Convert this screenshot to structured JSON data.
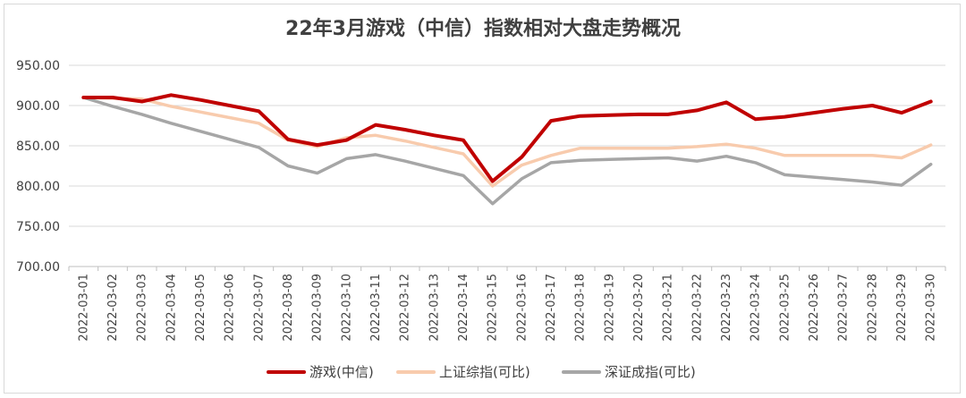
{
  "chart_data": {
    "type": "line",
    "title": "22年3月游戏（中信）指数相对大盘走势概况",
    "xlabel": "",
    "ylabel": "",
    "ylim": [
      700,
      950
    ],
    "yticks": [
      "700.00",
      "750.00",
      "800.00",
      "850.00",
      "900.00",
      "950.00"
    ],
    "x": [
      "2022-03-01",
      "2022-03-02",
      "2022-03-03",
      "2022-03-04",
      "2022-03-05",
      "2022-03-06",
      "2022-03-07",
      "2022-03-08",
      "2022-03-09",
      "2022-03-10",
      "2022-03-11",
      "2022-03-12",
      "2022-03-13",
      "2022-03-14",
      "2022-03-15",
      "2022-03-16",
      "2022-03-17",
      "2022-03-18",
      "2022-03-19",
      "2022-03-20",
      "2022-03-21",
      "2022-03-22",
      "2022-03-23",
      "2022-03-24",
      "2022-03-25",
      "2022-03-26",
      "2022-03-27",
      "2022-03-28",
      "2022-03-29",
      "2022-03-30"
    ],
    "grid": true,
    "legend_position": "bottom",
    "series": [
      {
        "name": "游戏(中信)",
        "color": "#c00000",
        "values": [
          910,
          910,
          905,
          913,
          907,
          900,
          893,
          858,
          851,
          857,
          876,
          870,
          863,
          857,
          806,
          836,
          881,
          887,
          888,
          889,
          889,
          894,
          904,
          883,
          886,
          891,
          896,
          900,
          891,
          905
        ]
      },
      {
        "name": "上证综指(可比)",
        "color": "#f8cbad",
        "values": [
          910,
          909,
          908,
          899,
          892,
          885,
          878,
          857,
          849,
          860,
          863,
          856,
          848,
          840,
          800,
          826,
          838,
          847,
          847,
          847,
          847,
          849,
          852,
          847,
          838,
          838,
          838,
          838,
          835,
          851
        ]
      },
      {
        "name": "深证成指(可比)",
        "color": "#a6a6a6",
        "values": [
          910,
          899,
          889,
          878,
          868,
          858,
          848,
          825,
          816,
          834,
          839,
          831,
          822,
          813,
          778,
          809,
          829,
          832,
          833,
          834,
          835,
          831,
          837,
          829,
          814,
          811,
          808,
          805,
          801,
          827
        ]
      }
    ]
  }
}
